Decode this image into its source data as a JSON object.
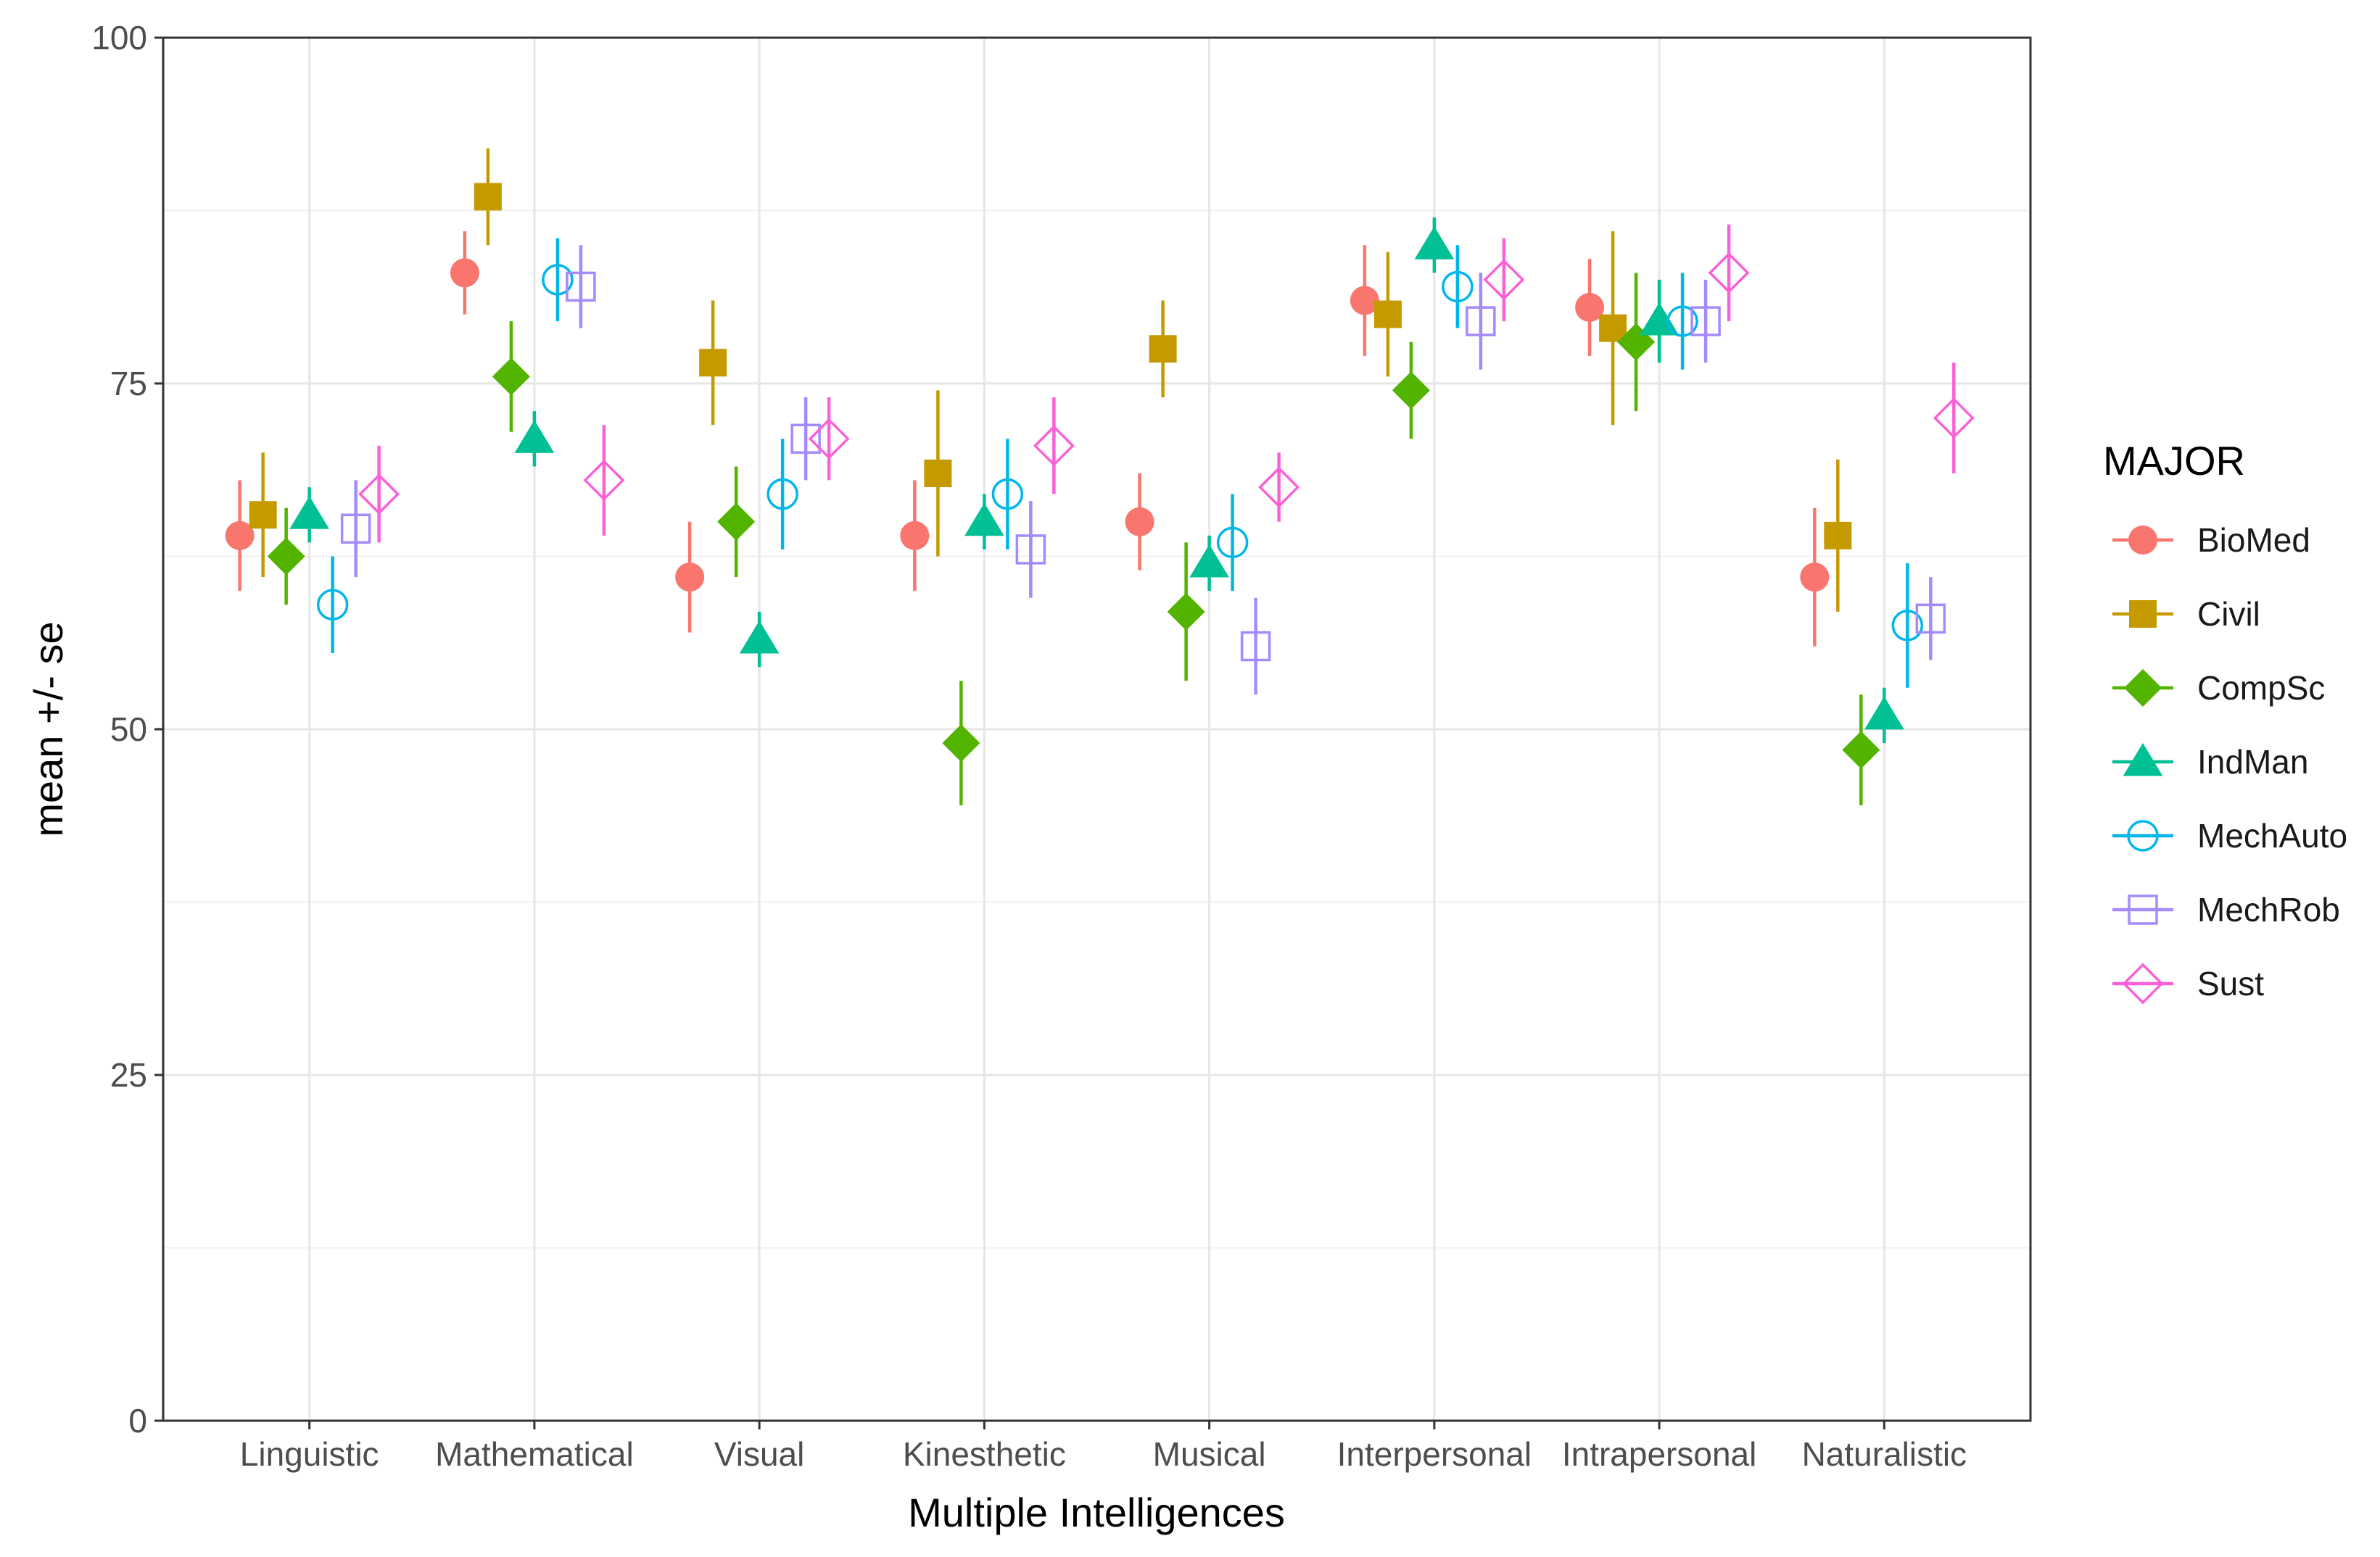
{
  "chart_data": {
    "type": "scatter",
    "title": "",
    "xlabel": "Multiple Intelligences",
    "ylabel": "mean +/- se",
    "ylim": [
      0,
      100
    ],
    "yticks": [
      "0",
      "25",
      "50",
      "75",
      "100"
    ],
    "grid": true,
    "legend": {
      "title": "MAJOR",
      "position": "right"
    },
    "categories": [
      "Linguistic",
      "Mathematical",
      "Visual",
      "Kinesthetic",
      "Musical",
      "Interpersonal",
      "Intrapersonal",
      "Naturalistic"
    ],
    "series": [
      {
        "name": "BioMed",
        "color": "#F8766D",
        "marker": "circle-filled",
        "values": [
          64,
          83,
          61,
          64,
          65,
          81,
          80.5,
          61
        ],
        "se": [
          4,
          3,
          4,
          4,
          3.5,
          4,
          3.5,
          5
        ]
      },
      {
        "name": "Civil",
        "color": "#C49A00",
        "marker": "square-filled",
        "values": [
          65.5,
          88.5,
          76.5,
          68.5,
          77.5,
          80,
          79,
          64
        ],
        "se": [
          4.5,
          3.5,
          4.5,
          6,
          3.5,
          4.5,
          7,
          5.5
        ]
      },
      {
        "name": "CompSc",
        "color": "#53B400",
        "marker": "diamond-filled",
        "values": [
          62.5,
          75.5,
          65,
          49,
          58.5,
          74.5,
          78,
          48.5
        ],
        "se": [
          3.5,
          4,
          4,
          4.5,
          5,
          3.5,
          5,
          4
        ]
      },
      {
        "name": "IndMan",
        "color": "#00C094",
        "marker": "triangle-filled",
        "values": [
          65.5,
          71,
          56.5,
          65,
          62,
          85,
          79.5,
          51
        ],
        "se": [
          2,
          2,
          2,
          2,
          2,
          2,
          3,
          2
        ]
      },
      {
        "name": "MechAuto",
        "color": "#00B6EB",
        "marker": "circle-open",
        "values": [
          59,
          82.5,
          67,
          67,
          63.5,
          82,
          79.5,
          57.5
        ],
        "se": [
          3.5,
          3,
          4,
          4,
          3.5,
          3,
          3.5,
          4.5
        ]
      },
      {
        "name": "MechRob",
        "color": "#A58AFF",
        "marker": "square-open",
        "values": [
          64.5,
          82,
          71,
          63,
          56,
          79.5,
          79.5,
          58
        ],
        "se": [
          3.5,
          3,
          3,
          3.5,
          3.5,
          3.5,
          3,
          3
        ]
      },
      {
        "name": "Sust",
        "color": "#FB61D7",
        "marker": "diamond-open",
        "values": [
          67,
          68,
          71,
          70.5,
          67.5,
          82.5,
          83,
          72.5
        ],
        "se": [
          3.5,
          4,
          3,
          3.5,
          2.5,
          3,
          3.5,
          4
        ]
      }
    ]
  }
}
